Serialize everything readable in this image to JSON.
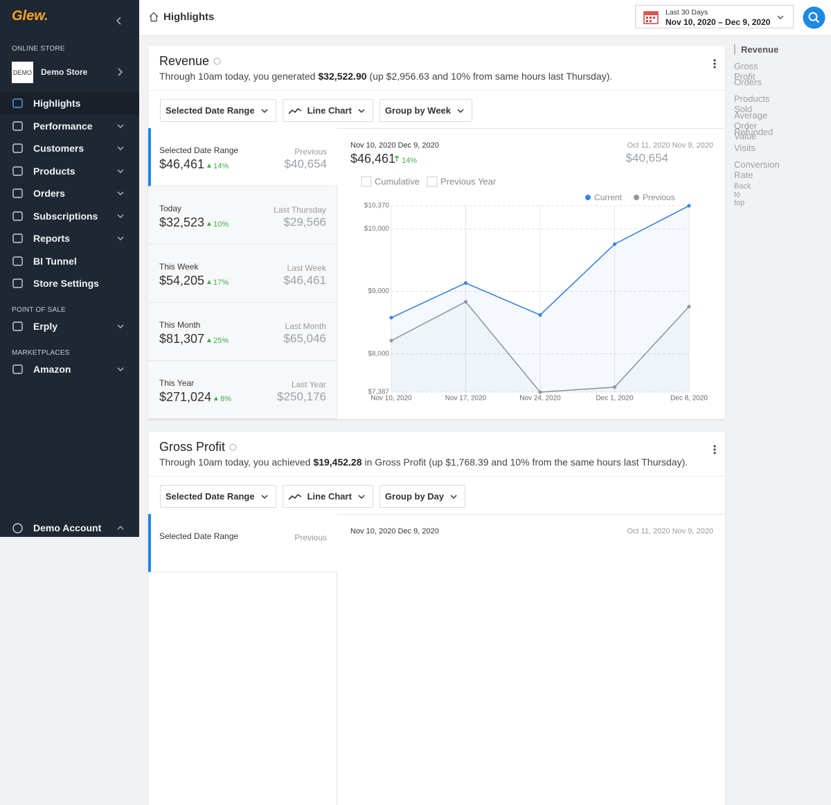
{
  "sidebar": {
    "logo": "Glew.",
    "section_online": "ONLINE STORE",
    "store": {
      "badge": "DEMO",
      "name": "Demo Store"
    },
    "nav": [
      {
        "label": "Highlights",
        "active": true
      },
      {
        "label": "Performance",
        "expandable": true
      },
      {
        "label": "Customers",
        "expandable": true
      },
      {
        "label": "Products",
        "expandable": true
      },
      {
        "label": "Orders",
        "expandable": true
      },
      {
        "label": "Subscriptions",
        "expandable": true
      },
      {
        "label": "Reports",
        "expandable": true
      },
      {
        "label": "BI Tunnel"
      },
      {
        "label": "Store Settings"
      }
    ],
    "section_pos": "POINT OF SALE",
    "pos_nav": [
      {
        "label": "Erply",
        "expandable": true
      }
    ],
    "section_marketplaces": "MARKETPLACES",
    "market_nav": [
      {
        "label": "Amazon",
        "expandable": true
      }
    ],
    "account": "Demo Account"
  },
  "topbar": {
    "title": "Highlights",
    "date_range": {
      "label": "Last 30 Days",
      "value": "Nov 10, 2020 – Dec 9, 2020"
    }
  },
  "right_nav": {
    "items": [
      {
        "label": "Revenue",
        "active": true
      },
      {
        "label": "Gross Profit"
      },
      {
        "label": "Orders"
      },
      {
        "label": "Products Sold"
      },
      {
        "label": "Average Order Value"
      },
      {
        "label": "Refunded"
      },
      {
        "label": "Visits"
      },
      {
        "label": "Conversion Rate"
      }
    ],
    "back": "Back to top"
  },
  "cards": [
    {
      "title": "Revenue",
      "summary": {
        "pre": "Through 10am today, you generated",
        "amount": "$32,522.90",
        "post": "(up $2,956.63 and 10% from same hours last Thursday)."
      },
      "controls": [
        {
          "label": "Selected Date Range"
        },
        {
          "label": "Line Chart",
          "icon": "line-chart"
        },
        {
          "label": "Group by Week"
        }
      ],
      "periods": [
        {
          "label": "Selected Date Range",
          "value": "$46,461",
          "change": "14%",
          "prev_label": "Previous",
          "prev_value": "$40,654",
          "selected": true
        },
        {
          "label": "Today",
          "value": "$32,523",
          "change": "10%",
          "prev_label": "Last Thursday",
          "prev_value": "$29,566"
        },
        {
          "label": "This Week",
          "value": "$54,205",
          "change": "17%",
          "prev_label": "Last Week",
          "prev_value": "$46,461"
        },
        {
          "label": "This Month",
          "value": "$81,307",
          "change": "25%",
          "prev_label": "Last Month",
          "prev_value": "$65,046"
        },
        {
          "label": "This Year",
          "value": "$271,024",
          "change": "8%",
          "prev_label": "Last Year",
          "prev_value": "$250,176"
        }
      ],
      "header": {
        "current_range": "Nov 10, 2020 Dec 9, 2020",
        "current_value": "$46,461",
        "change": "14%",
        "previous_range": "Oct 11, 2020 Nov 9, 2020",
        "previous_value": "$40,654"
      },
      "options": [
        "Cumulative",
        "Previous Year"
      ],
      "chart": {
        "type": "line",
        "categories": [
          "Nov 10, 2020",
          "Nov 17, 2020",
          "Nov 24, 2020",
          "Dec 1, 2020",
          "Dec 8, 2020"
        ],
        "series": [
          {
            "name": "Current",
            "color": "#3b83e0",
            "values": [
              8578,
              9133,
              8622,
              9756,
              10370
            ]
          },
          {
            "name": "Previous",
            "color": "#8e989f",
            "values": [
              8211,
              8833,
              7387,
              7467,
              8756
            ]
          }
        ],
        "ylim": [
          7387,
          10370
        ],
        "yticks": [
          {
            "value": 7387,
            "label": "$7,387"
          },
          {
            "value": 8000,
            "label": "$8,000"
          },
          {
            "value": 9000,
            "label": "$9,000"
          },
          {
            "value": 10000,
            "label": "$10,000"
          },
          {
            "value": 10370,
            "label": "$10,370"
          }
        ],
        "grid": true
      }
    },
    {
      "title": "Gross Profit",
      "summary": {
        "pre": "Through 10am today, you achieved",
        "amount": "$19,452.28",
        "post": "in Gross Profit (up $1,768.39 and 10% from the same hours last Thursday)."
      },
      "controls": [
        {
          "label": "Selected Date Range"
        },
        {
          "label": "Line Chart",
          "icon": "line-chart"
        },
        {
          "label": "Group by Day"
        }
      ],
      "periods": [
        {
          "label": "Selected Date Range",
          "prev_label": "Previous",
          "selected": true
        }
      ],
      "header": {
        "current_range": "Nov 10, 2020 Dec 9, 2020",
        "previous_range": "Oct 11, 2020 Nov 9, 2020"
      }
    }
  ]
}
